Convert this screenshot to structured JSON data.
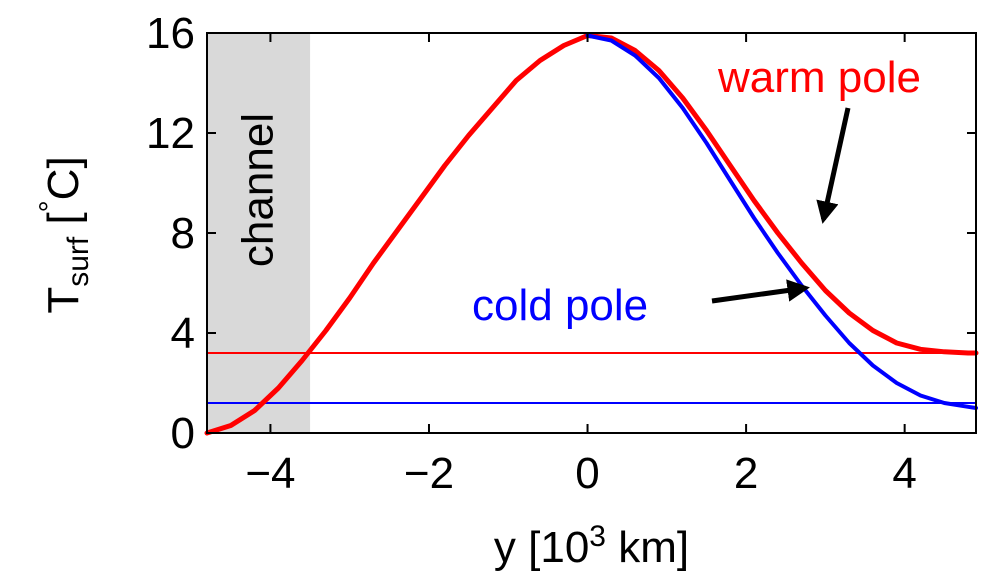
{
  "chart_data": {
    "type": "line",
    "title": "",
    "xlabel": {
      "base": "y [10",
      "superscript": "3",
      "rest": " km]"
    },
    "ylabel": {
      "main": "T",
      "subscript": "surf",
      "open": " [",
      "degree": "°",
      "unit": "C]"
    },
    "xlim": [
      -4.8,
      4.9
    ],
    "ylim": [
      0,
      16
    ],
    "xticks": [
      {
        "value": -4,
        "label": "−4"
      },
      {
        "value": -2,
        "label": "−2"
      },
      {
        "value": 0,
        "label": "0"
      },
      {
        "value": 2,
        "label": "2"
      },
      {
        "value": 4,
        "label": "4"
      }
    ],
    "yticks": [
      {
        "value": 0,
        "label": "0"
      },
      {
        "value": 4,
        "label": "4"
      },
      {
        "value": 8,
        "label": "8"
      },
      {
        "value": 12,
        "label": "12"
      },
      {
        "value": 16,
        "label": "16"
      }
    ],
    "grid": false,
    "shaded_region": {
      "x": [
        -4.8,
        -3.5
      ],
      "label": "channel",
      "color": "#d9d9d9"
    },
    "series": [
      {
        "name": "warm pole",
        "color": "#ff0000",
        "x": [
          -4.8,
          -4.5,
          -4.2,
          -3.9,
          -3.6,
          -3.3,
          -3.0,
          -2.7,
          -2.4,
          -2.1,
          -1.8,
          -1.5,
          -1.2,
          -0.9,
          -0.6,
          -0.3,
          0.0,
          0.3,
          0.6,
          0.9,
          1.2,
          1.5,
          1.8,
          2.1,
          2.4,
          2.7,
          3.0,
          3.3,
          3.6,
          3.9,
          4.2,
          4.5,
          4.8,
          4.9
        ],
        "y": [
          0.0,
          0.3,
          0.9,
          1.8,
          2.9,
          4.1,
          5.4,
          6.8,
          8.1,
          9.4,
          10.7,
          11.9,
          13.0,
          14.1,
          14.9,
          15.5,
          15.9,
          15.8,
          15.3,
          14.5,
          13.4,
          12.1,
          10.7,
          9.3,
          8.0,
          6.8,
          5.7,
          4.8,
          4.1,
          3.6,
          3.35,
          3.25,
          3.2,
          3.2
        ]
      },
      {
        "name": "cold pole",
        "color": "#0000ff",
        "x": [
          0.0,
          0.3,
          0.6,
          0.9,
          1.2,
          1.5,
          1.8,
          2.1,
          2.4,
          2.7,
          3.0,
          3.3,
          3.6,
          3.9,
          4.2,
          4.5,
          4.8,
          4.9
        ],
        "y": [
          15.9,
          15.7,
          15.1,
          14.2,
          13.0,
          11.6,
          10.1,
          8.6,
          7.2,
          5.9,
          4.7,
          3.6,
          2.7,
          2.0,
          1.5,
          1.2,
          1.05,
          1.0
        ]
      }
    ],
    "reference_lines": [
      {
        "series": "warm pole",
        "y": 3.2,
        "color": "#ff0000"
      },
      {
        "series": "cold pole",
        "y": 1.2,
        "color": "#0000ff"
      }
    ],
    "annotations": [
      {
        "text": "warm pole",
        "color": "#ff0000",
        "arrow_to": [
          2.9,
          8.3
        ]
      },
      {
        "text": "cold pole",
        "color": "#0000ff",
        "arrow_to": [
          2.85,
          6.2
        ]
      }
    ]
  }
}
